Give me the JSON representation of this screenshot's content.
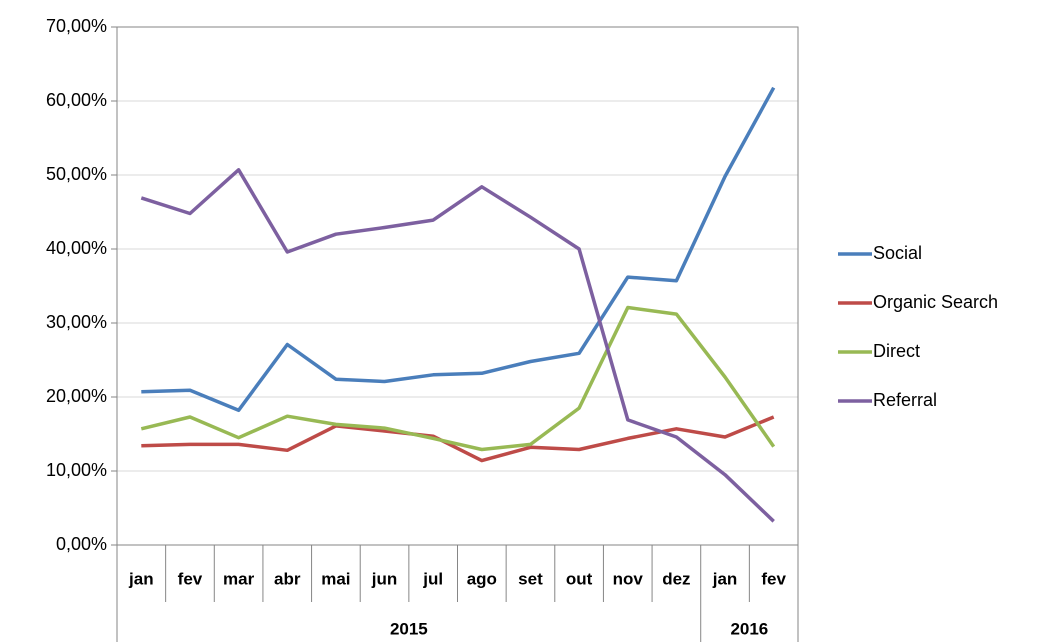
{
  "chart_data": {
    "type": "line",
    "categories": [
      "jan",
      "fev",
      "mar",
      "abr",
      "mai",
      "jun",
      "jul",
      "ago",
      "set",
      "out",
      "nov",
      "dez",
      "jan",
      "fev"
    ],
    "category_groups": [
      {
        "label": "2015",
        "span": 12
      },
      {
        "label": "2016",
        "span": 2
      }
    ],
    "series": [
      {
        "name": "Social",
        "color": "#4a7ebb",
        "values": [
          20.7,
          20.9,
          18.2,
          27.1,
          22.4,
          22.1,
          23.0,
          23.2,
          24.8,
          25.9,
          36.2,
          35.7,
          49.8,
          61.8
        ]
      },
      {
        "name": "Organic Search",
        "color": "#be4b48",
        "values": [
          13.4,
          13.6,
          13.6,
          12.8,
          16.1,
          15.4,
          14.7,
          11.4,
          13.2,
          12.9,
          14.4,
          15.7,
          14.6,
          17.3
        ]
      },
      {
        "name": "Direct",
        "color": "#98b954",
        "values": [
          15.7,
          17.3,
          14.5,
          17.4,
          16.3,
          15.8,
          14.4,
          12.9,
          13.6,
          18.5,
          32.1,
          31.2,
          22.7,
          13.3
        ]
      },
      {
        "name": "Referral",
        "color": "#7d60a0",
        "values": [
          46.9,
          44.8,
          50.7,
          39.6,
          42.0,
          42.9,
          43.9,
          48.4,
          44.3,
          40.0,
          16.9,
          14.6,
          9.5,
          3.2
        ]
      }
    ],
    "ylim": [
      0,
      70
    ],
    "yticks": [
      {
        "value": 0,
        "label": "0,00%"
      },
      {
        "value": 10,
        "label": "10,00%"
      },
      {
        "value": 20,
        "label": "20,00%"
      },
      {
        "value": 30,
        "label": "30,00%"
      },
      {
        "value": 40,
        "label": "40,00%"
      },
      {
        "value": 50,
        "label": "50,00%"
      },
      {
        "value": 60,
        "label": "60,00%"
      },
      {
        "value": 70,
        "label": "70,00%"
      }
    ],
    "grid": true,
    "legend": "right"
  }
}
